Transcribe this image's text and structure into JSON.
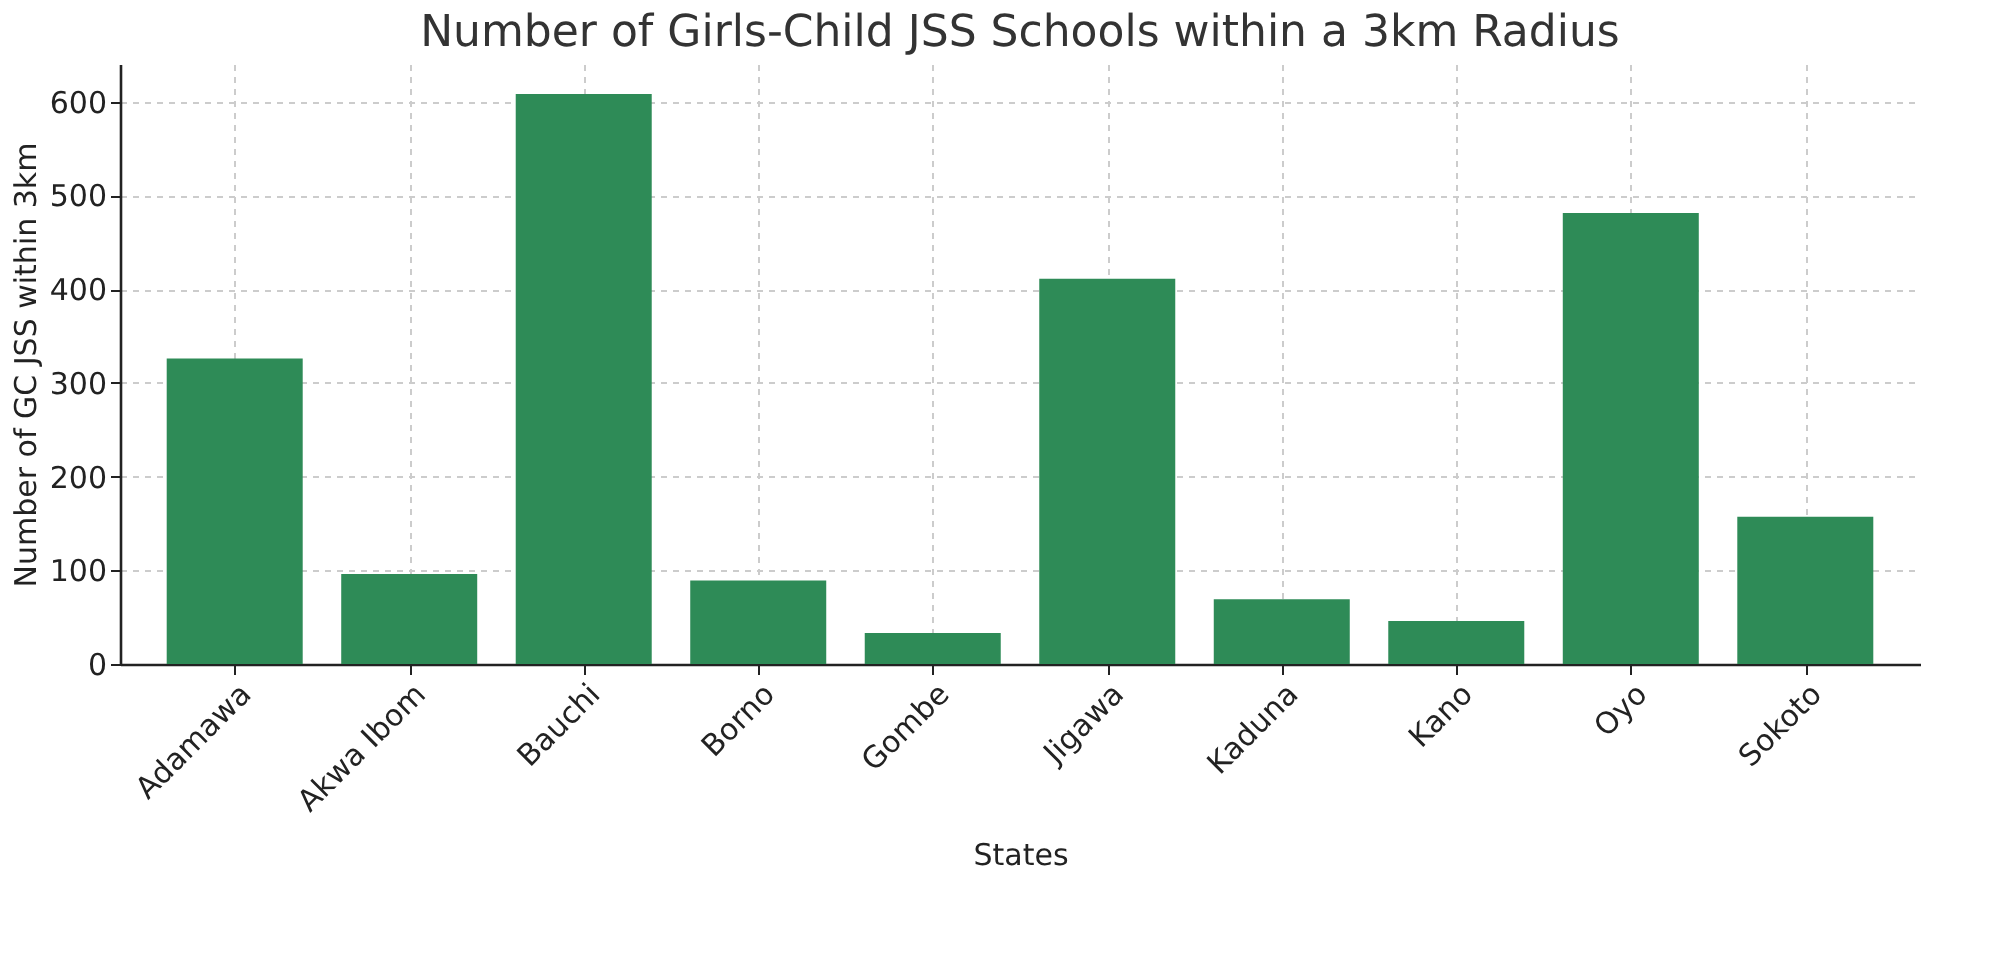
{
  "chart_data": {
    "type": "bar",
    "title": "Number of Girls-Child JSS Schools within a 3km Radius",
    "xlabel": "States",
    "ylabel": "Number of GC JSS within 3km",
    "categories": [
      "Adamawa",
      "Akwa Ibom",
      "Bauchi",
      "Borno",
      "Gombe",
      "Jigawa",
      "Kaduna",
      "Kano",
      "Oyo",
      "Sokoto"
    ],
    "values": [
      326,
      96,
      608,
      89,
      33,
      411,
      69,
      46,
      481,
      157
    ],
    "color": "#2e8b57",
    "ylim": [
      0,
      640
    ],
    "yticks": [
      0,
      100,
      200,
      300,
      400,
      500,
      600
    ],
    "grid": true
  }
}
